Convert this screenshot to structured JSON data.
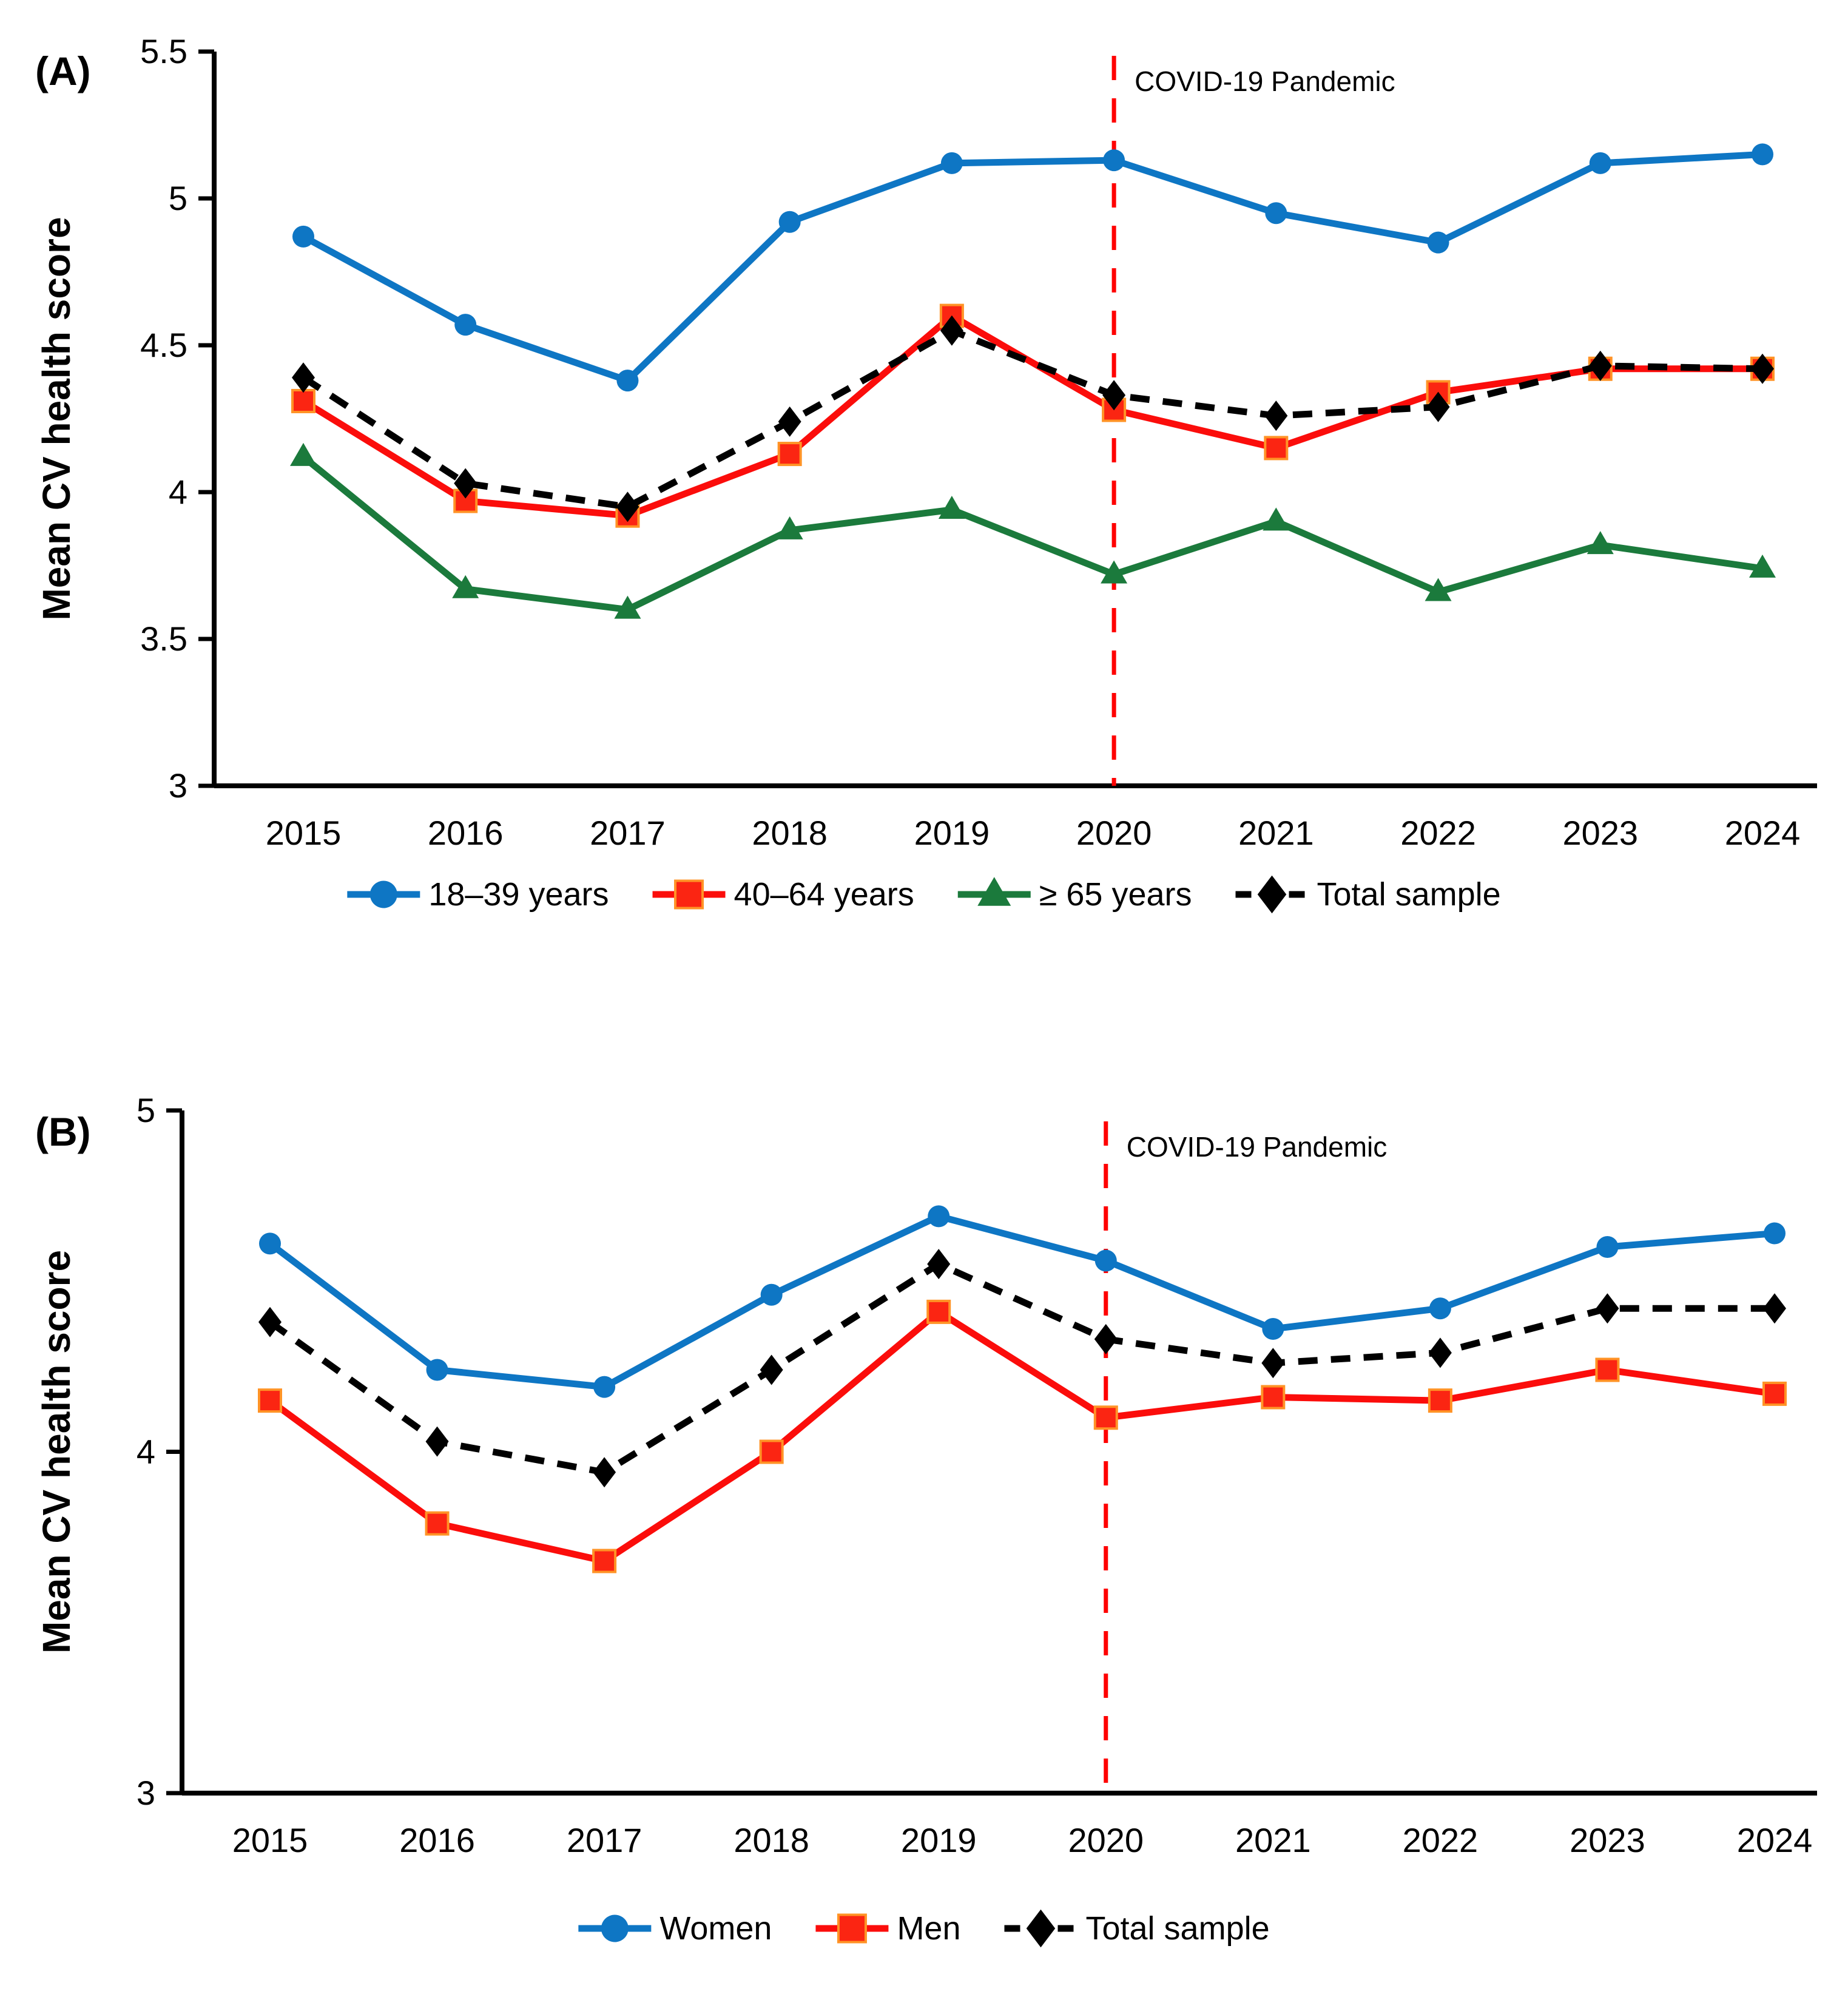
{
  "page_background": "#FFFFFF",
  "annotation_line_color": "#FF0000",
  "axis_color": "#000000",
  "panels": [
    {
      "id": "A",
      "panel_label": "(A)",
      "y_axis_title": "Mean CV health score",
      "annotation": {
        "text": "COVID-19 Pandemic",
        "at_year": 2020
      },
      "chart_data": {
        "type": "line",
        "x": [
          2015,
          2016,
          2017,
          2018,
          2019,
          2020,
          2021,
          2022,
          2023,
          2024
        ],
        "xtick_labels": [
          "2015",
          "2016",
          "2017",
          "2018",
          "2019",
          "2020",
          "2021",
          "2022",
          "2023",
          "2024"
        ],
        "ylim": [
          3,
          5.5
        ],
        "yticks": [
          3,
          3.5,
          4,
          4.5,
          5,
          5.5
        ],
        "ytick_labels": [
          "3",
          "3.5",
          "4",
          "4.5",
          "5",
          "5.5"
        ],
        "grid": false,
        "legend_position": "bottom",
        "series": [
          {
            "name": "18–39 years",
            "color": "#0E76C4",
            "marker": "circle",
            "dashed": false,
            "values": [
              4.87,
              4.57,
              4.38,
              4.92,
              5.12,
              5.13,
              4.95,
              4.85,
              5.12,
              5.15
            ]
          },
          {
            "name": "40–64 years",
            "color": "#FB0D0B",
            "marker": "square",
            "marker_fill": "#FB2512",
            "marker_stroke": "#FF9326",
            "dashed": false,
            "values": [
              4.31,
              3.97,
              3.92,
              4.13,
              4.6,
              4.28,
              4.15,
              4.34,
              4.42,
              4.42
            ]
          },
          {
            "name": "≥ 65 years",
            "color": "#1B7A3C",
            "marker": "triangle",
            "dashed": false,
            "values": [
              4.12,
              3.67,
              3.6,
              3.87,
              3.94,
              3.72,
              3.9,
              3.66,
              3.82,
              3.74
            ]
          },
          {
            "name": "Total sample",
            "color": "#000000",
            "marker": "diamond",
            "dashed": true,
            "values": [
              4.39,
              4.03,
              3.95,
              4.24,
              4.55,
              4.33,
              4.26,
              4.29,
              4.43,
              4.42
            ]
          }
        ]
      }
    },
    {
      "id": "B",
      "panel_label": "(B)",
      "y_axis_title": "Mean CV health score",
      "annotation": {
        "text": "COVID-19 Pandemic",
        "at_year": 2020
      },
      "chart_data": {
        "type": "line",
        "x": [
          2015,
          2016,
          2017,
          2018,
          2019,
          2020,
          2021,
          2022,
          2023,
          2024
        ],
        "xtick_labels": [
          "2015",
          "2016",
          "2017",
          "2018",
          "2019",
          "2020",
          "2021",
          "2022",
          "2023",
          "2024"
        ],
        "ylim": [
          3,
          5
        ],
        "yticks": [
          3,
          4,
          5
        ],
        "ytick_labels": [
          "3",
          "4",
          "5"
        ],
        "grid": false,
        "legend_position": "bottom",
        "series": [
          {
            "name": "Women",
            "color": "#0E76C4",
            "marker": "circle",
            "dashed": false,
            "values": [
              4.61,
              4.24,
              4.19,
              4.46,
              4.69,
              4.56,
              4.36,
              4.42,
              4.6,
              4.64
            ]
          },
          {
            "name": "Men",
            "color": "#FB0D0B",
            "marker": "square",
            "marker_fill": "#FB2512",
            "marker_stroke": "#FF9326",
            "dashed": false,
            "values": [
              4.15,
              3.79,
              3.68,
              4.0,
              4.41,
              4.1,
              4.16,
              4.15,
              4.24,
              4.17
            ]
          },
          {
            "name": "Total sample",
            "color": "#000000",
            "marker": "diamond",
            "dashed": true,
            "values": [
              4.38,
              4.03,
              3.94,
              4.24,
              4.55,
              4.33,
              4.26,
              4.29,
              4.42,
              4.42
            ]
          }
        ]
      }
    }
  ]
}
